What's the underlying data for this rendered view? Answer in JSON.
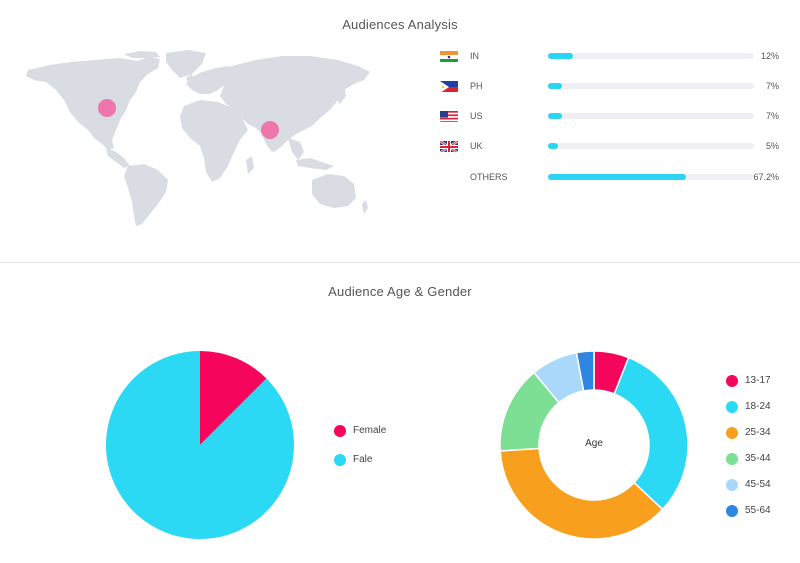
{
  "audiences": {
    "title": "Audiences Analysis",
    "countries": [
      {
        "code": "IN",
        "value": "12%",
        "fraction": 0.12,
        "flag": "india-flag-icon"
      },
      {
        "code": "PH",
        "value": "7%",
        "fraction": 0.07,
        "flag": "philippines-flag-icon"
      },
      {
        "code": "US",
        "value": "7%",
        "fraction": 0.07,
        "flag": "usa-flag-icon"
      },
      {
        "code": "UK",
        "value": "5%",
        "fraction": 0.05,
        "flag": "uk-flag-icon"
      },
      {
        "code": "OTHERS",
        "value": "67.2%",
        "fraction": 0.672,
        "flag": ""
      }
    ]
  },
  "age_gender": {
    "title": "Audience Age & Gender"
  },
  "chart_data": [
    {
      "type": "pie",
      "title": "",
      "labels": [
        "Female",
        "Fale"
      ],
      "values": [
        12.5,
        87.5
      ],
      "colors": [
        "#f5055c",
        "#2bd9f4"
      ],
      "legend": "right"
    },
    {
      "type": "pie",
      "variant": "donut",
      "center_label": "Age",
      "labels": [
        "13-17",
        "18-24",
        "25-34",
        "35-44",
        "45-54",
        "55-64"
      ],
      "values": [
        6,
        31,
        37,
        15,
        8,
        3
      ],
      "colors": [
        "#f5055c",
        "#2bd9f4",
        "#f8a01e",
        "#7ddf93",
        "#a9d8fb",
        "#2f86e0"
      ],
      "legend": "right"
    }
  ],
  "colors": {
    "bar_fill": "#2bd4f2",
    "bar_track": "#eef0f3",
    "map_land": "#d9dce2",
    "map_marker": "#f06aa6"
  }
}
